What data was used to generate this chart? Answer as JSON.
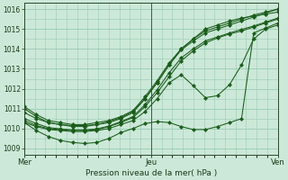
{
  "xlabel": "Pression niveau de la mer( hPa )",
  "background_color": "#cce8d8",
  "grid_color": "#99ccb3",
  "line_color": "#1a5c1a",
  "ylim": [
    1008.7,
    1016.3
  ],
  "yticks": [
    1009,
    1010,
    1011,
    1012,
    1013,
    1014,
    1015,
    1016
  ],
  "xtick_labels": [
    "Mer",
    "Jeu",
    "Ven"
  ],
  "xtick_positions": [
    0,
    12,
    24
  ],
  "lines": [
    [
      1011.0,
      1010.6,
      1010.3,
      1010.2,
      1010.1,
      1010.1,
      1010.2,
      1010.3,
      1010.5,
      1010.8,
      1011.5,
      1012.3,
      1013.2,
      1014.0,
      1014.5,
      1014.9,
      1015.1,
      1015.3,
      1015.5,
      1015.7,
      1015.85,
      1016.0
    ],
    [
      1011.1,
      1010.7,
      1010.4,
      1010.3,
      1010.2,
      1010.2,
      1010.3,
      1010.4,
      1010.6,
      1010.9,
      1011.6,
      1012.4,
      1013.3,
      1014.0,
      1014.5,
      1015.0,
      1015.2,
      1015.4,
      1015.55,
      1015.65,
      1015.75,
      1015.85
    ],
    [
      1010.4,
      1010.15,
      1010.0,
      1009.95,
      1009.9,
      1009.9,
      1009.95,
      1010.1,
      1010.3,
      1010.55,
      1011.1,
      1011.8,
      1012.6,
      1013.4,
      1013.9,
      1014.3,
      1014.55,
      1014.75,
      1014.9,
      1015.1,
      1015.3,
      1015.5
    ],
    [
      1010.3,
      1010.1,
      1009.95,
      1009.9,
      1009.85,
      1009.85,
      1009.9,
      1010.0,
      1010.2,
      1010.4,
      1010.85,
      1011.5,
      1012.3,
      1012.7,
      1012.15,
      1011.55,
      1011.65,
      1012.2,
      1013.2,
      1014.5,
      1015.0,
      1015.2
    ],
    [
      1010.3,
      1009.9,
      1009.6,
      1009.4,
      1009.3,
      1009.25,
      1009.3,
      1009.5,
      1009.8,
      1010.0,
      1010.25,
      1010.35,
      1010.3,
      1010.1,
      1009.95,
      1009.95,
      1010.1,
      1010.3,
      1010.5,
      1014.8,
      1015.05,
      1015.3
    ],
    [
      1010.8,
      1010.5,
      1010.3,
      1010.2,
      1010.15,
      1010.15,
      1010.2,
      1010.35,
      1010.55,
      1010.85,
      1011.5,
      1012.3,
      1013.2,
      1013.95,
      1014.4,
      1014.8,
      1015.0,
      1015.2,
      1015.4,
      1015.6,
      1015.8,
      1016.0
    ],
    [
      1010.5,
      1010.25,
      1010.05,
      1009.98,
      1009.93,
      1009.93,
      1009.98,
      1010.12,
      1010.35,
      1010.6,
      1011.2,
      1011.95,
      1012.8,
      1013.55,
      1014.0,
      1014.4,
      1014.6,
      1014.8,
      1014.98,
      1015.15,
      1015.35,
      1015.55
    ]
  ],
  "x_count": 22
}
